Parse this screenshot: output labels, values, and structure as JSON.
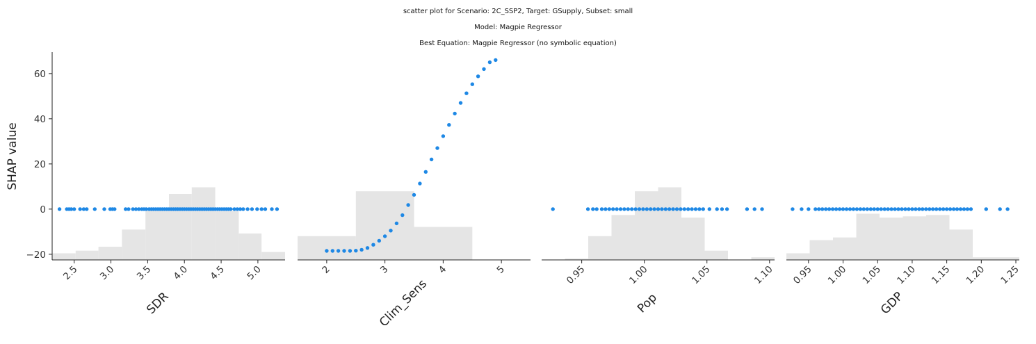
{
  "titles": [
    "scatter plot for Scenario: 2C_SSP2, Target: GSupply, Subset: small",
    "Model: Magpie Regressor",
    "Best Equation: Magpie Regressor (no symbolic equation)"
  ],
  "colors": {
    "point": "#1e88e5",
    "histogram": "#e5e5e5",
    "axis": "#222222"
  },
  "chart_data": [
    {
      "type": "scatter",
      "xlabel": "SDR",
      "ylabel": "SHAP value",
      "xlim": [
        2.2,
        5.37
      ],
      "ylim": [
        -22.5,
        69.5
      ],
      "xticks": [
        2.5,
        3.0,
        3.5,
        4.0,
        4.5,
        5.0
      ],
      "xtick_labels": [
        "2.5",
        "3.0",
        "3.5",
        "4.0",
        "4.5",
        "5.0"
      ],
      "yticks": [
        -20,
        0,
        20,
        40,
        60
      ],
      "ytick_labels": [
        "−20",
        "0",
        "20",
        "40",
        "60"
      ],
      "tick_rotation": 45,
      "histogram": {
        "edges": [
          2.2,
          2.52,
          2.83,
          3.15,
          3.47,
          3.79,
          4.1,
          4.42,
          4.74,
          5.05,
          5.37
        ],
        "heights": [
          0.05,
          0.07,
          0.1,
          0.23,
          0.38,
          0.5,
          0.55,
          0.37,
          0.2,
          0.06
        ]
      },
      "x": [
        2.3,
        2.4,
        2.43,
        2.46,
        2.5,
        2.58,
        2.63,
        2.67,
        2.78,
        2.91,
        2.99,
        3.02,
        3.05,
        3.2,
        3.24,
        3.3,
        3.34,
        3.38,
        3.42,
        3.45,
        3.48,
        3.52,
        3.55,
        3.58,
        3.61,
        3.64,
        3.67,
        3.7,
        3.73,
        3.76,
        3.79,
        3.82,
        3.85,
        3.88,
        3.91,
        3.94,
        3.97,
        4.0,
        4.03,
        4.06,
        4.09,
        4.12,
        4.15,
        4.18,
        4.21,
        4.24,
        4.27,
        4.3,
        4.33,
        4.36,
        4.39,
        4.42,
        4.45,
        4.48,
        4.51,
        4.54,
        4.57,
        4.6,
        4.63,
        4.68,
        4.72,
        4.76,
        4.8,
        4.86,
        4.92,
        4.99,
        5.05,
        5.1,
        5.19,
        5.26
      ],
      "y": [
        0,
        0,
        0,
        0,
        0,
        0,
        0,
        0,
        0,
        0,
        0,
        0,
        0,
        0,
        0,
        0,
        0,
        0,
        0,
        0,
        0,
        0,
        0,
        0,
        0,
        0,
        0,
        0,
        0,
        0,
        0,
        0,
        0,
        0,
        0,
        0,
        0,
        0,
        0,
        0,
        0,
        0,
        0,
        0,
        0,
        0,
        0,
        0,
        0,
        0,
        0,
        0,
        0,
        0,
        0,
        0,
        0,
        0,
        0,
        0,
        0,
        0,
        0,
        0,
        0,
        0,
        0,
        0,
        0,
        0
      ]
    },
    {
      "type": "scatter",
      "xlabel": "Clim_Sens",
      "xlim": [
        1.5,
        5.5
      ],
      "ylim": [
        -22.5,
        69.5
      ],
      "xticks": [
        2,
        3,
        4,
        5
      ],
      "xtick_labels": [
        "2",
        "3",
        "4",
        "5"
      ],
      "tick_rotation": 45,
      "histogram": {
        "edges": [
          1.5,
          2.5,
          3.5,
          4.5,
          5.5
        ],
        "heights": [
          0.18,
          0.52,
          0.25,
          0.0
        ]
      },
      "x": [
        2.0,
        2.1,
        2.2,
        2.3,
        2.4,
        2.5,
        2.6,
        2.7,
        2.8,
        2.9,
        3.0,
        3.1,
        3.2,
        3.3,
        3.4,
        3.5,
        3.6,
        3.7,
        3.8,
        3.9,
        4.0,
        4.1,
        4.2,
        4.3,
        4.4,
        4.5,
        4.6,
        4.7,
        4.8,
        4.9
      ],
      "y": [
        -18.5,
        -18.5,
        -18.5,
        -18.5,
        -18.5,
        -18.4,
        -18.0,
        -17.2,
        -15.8,
        -14.0,
        -12.0,
        -9.5,
        -6.3,
        -2.7,
        1.8,
        6.3,
        11.3,
        16.5,
        22.0,
        27.0,
        32.3,
        37.3,
        42.3,
        47.0,
        51.3,
        55.3,
        58.8,
        62.0,
        65.0,
        66.0
      ]
    },
    {
      "type": "scatter",
      "xlabel": "Pop",
      "xlim": [
        0.918,
        1.104
      ],
      "ylim": [
        -22.5,
        69.5
      ],
      "xticks": [
        0.95,
        1.0,
        1.05,
        1.1
      ],
      "xtick_labels": [
        "0.95",
        "1.00",
        "1.05",
        "1.10"
      ],
      "tick_rotation": 45,
      "histogram": {
        "edges": [
          0.918,
          0.9366,
          0.9552,
          0.9738,
          0.9924,
          1.011,
          1.0296,
          1.0482,
          1.0668,
          1.0854,
          1.104
        ],
        "heights": [
          0.0,
          0.01,
          0.18,
          0.34,
          0.52,
          0.55,
          0.32,
          0.07,
          0.0,
          0.02
        ]
      },
      "x": [
        0.927,
        0.955,
        0.959,
        0.962,
        0.966,
        0.969,
        0.972,
        0.975,
        0.978,
        0.981,
        0.984,
        0.987,
        0.99,
        0.993,
        0.996,
        0.999,
        1.002,
        1.005,
        1.008,
        1.011,
        1.014,
        1.017,
        1.02,
        1.023,
        1.026,
        1.029,
        1.032,
        1.035,
        1.038,
        1.041,
        1.044,
        1.047,
        1.052,
        1.058,
        1.062,
        1.066,
        1.082,
        1.088,
        1.094
      ],
      "y": [
        0,
        0,
        0,
        0,
        0,
        0,
        0,
        0,
        0,
        0,
        0,
        0,
        0,
        0,
        0,
        0,
        0,
        0,
        0,
        0,
        0,
        0,
        0,
        0,
        0,
        0,
        0,
        0,
        0,
        0,
        0,
        0,
        0,
        0,
        0,
        0,
        0,
        0,
        0
      ]
    },
    {
      "type": "scatter",
      "xlabel": "GDP",
      "xlim": [
        0.918,
        1.255
      ],
      "ylim": [
        -22.5,
        69.5
      ],
      "xticks": [
        0.95,
        1.0,
        1.05,
        1.1,
        1.15,
        1.2,
        1.25
      ],
      "xtick_labels": [
        "0.95",
        "1.00",
        "1.05",
        "1.10",
        "1.15",
        "1.20",
        "1.25"
      ],
      "tick_rotation": 45,
      "histogram": {
        "edges": [
          0.918,
          0.9517,
          0.9854,
          1.0191,
          1.0528,
          1.0865,
          1.1202,
          1.1539,
          1.1876,
          1.2213,
          1.255
        ],
        "heights": [
          0.05,
          0.15,
          0.17,
          0.35,
          0.32,
          0.33,
          0.34,
          0.23,
          0.02,
          0.02
        ]
      },
      "x": [
        0.927,
        0.94,
        0.95,
        0.96,
        0.965,
        0.97,
        0.975,
        0.98,
        0.985,
        0.99,
        0.995,
        1.0,
        1.005,
        1.01,
        1.015,
        1.02,
        1.025,
        1.03,
        1.035,
        1.04,
        1.045,
        1.05,
        1.055,
        1.06,
        1.065,
        1.07,
        1.075,
        1.08,
        1.085,
        1.09,
        1.095,
        1.1,
        1.105,
        1.11,
        1.115,
        1.12,
        1.125,
        1.13,
        1.135,
        1.14,
        1.145,
        1.15,
        1.155,
        1.16,
        1.165,
        1.17,
        1.175,
        1.18,
        1.185,
        1.207,
        1.227,
        1.238
      ],
      "y": [
        0,
        0,
        0,
        0,
        0,
        0,
        0,
        0,
        0,
        0,
        0,
        0,
        0,
        0,
        0,
        0,
        0,
        0,
        0,
        0,
        0,
        0,
        0,
        0,
        0,
        0,
        0,
        0,
        0,
        0,
        0,
        0,
        0,
        0,
        0,
        0,
        0,
        0,
        0,
        0,
        0,
        0,
        0,
        0,
        0,
        0,
        0,
        0,
        0,
        0,
        0,
        0
      ]
    }
  ]
}
